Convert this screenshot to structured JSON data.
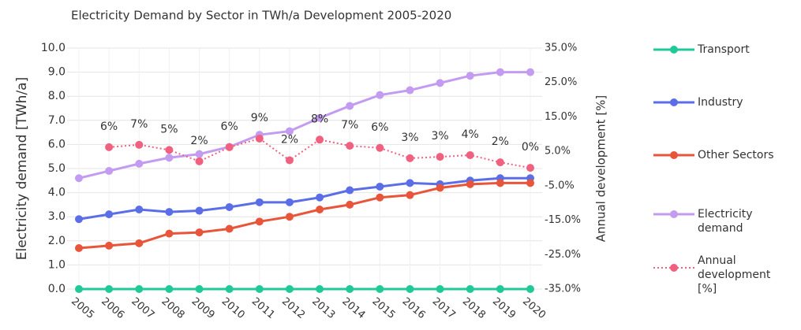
{
  "chart_data": {
    "type": "line",
    "title": "Electricity Demand by Sector in TWh/a Development 2005-2020",
    "ylabel": "Electricity demand [TWh/a]",
    "y2label": "Annual development [%]",
    "categories": [
      "2005",
      "2006",
      "2007",
      "2008",
      "2009",
      "2010",
      "2011",
      "2012",
      "2013",
      "2014",
      "2015",
      "2016",
      "2017",
      "2018",
      "2019",
      "2020"
    ],
    "ylim": [
      0,
      10
    ],
    "yticks": [
      {
        "value": 0,
        "label": "0.0"
      },
      {
        "value": 1,
        "label": "1.0"
      },
      {
        "value": 2,
        "label": "2.0"
      },
      {
        "value": 3,
        "label": "3.0"
      },
      {
        "value": 4,
        "label": "4.0"
      },
      {
        "value": 5,
        "label": "5.0"
      },
      {
        "value": 6,
        "label": "6.0"
      },
      {
        "value": 7,
        "label": "7.0"
      },
      {
        "value": 8,
        "label": "8.0"
      },
      {
        "value": 9,
        "label": "9.0"
      },
      {
        "value": 10,
        "label": "10.0"
      }
    ],
    "y2lim": [
      -35,
      35
    ],
    "y2ticks": [
      {
        "value": -35,
        "label": "-35.0%"
      },
      {
        "value": -25,
        "label": "-25.0%"
      },
      {
        "value": -15,
        "label": "-15.0%"
      },
      {
        "value": -5,
        "label": "-5.0%"
      },
      {
        "value": 5,
        "label": "5.0%"
      },
      {
        "value": 15,
        "label": "15.0%"
      },
      {
        "value": 25,
        "label": "25.0%"
      },
      {
        "value": 35,
        "label": "35.0%"
      }
    ],
    "grid": true,
    "legend": "right",
    "series": [
      {
        "name": "Transport",
        "color": "#20c997",
        "values": [
          0,
          0,
          0,
          0,
          0,
          0,
          0,
          0,
          0,
          0,
          0,
          0,
          0,
          0,
          0,
          0
        ]
      },
      {
        "name": "Industry",
        "color": "#5b6ee8",
        "values": [
          2.9,
          3.1,
          3.3,
          3.2,
          3.25,
          3.4,
          3.6,
          3.6,
          3.8,
          4.1,
          4.25,
          4.4,
          4.35,
          4.5,
          4.6,
          4.6
        ]
      },
      {
        "name": "Other Sectors",
        "color": "#e8553a",
        "values": [
          1.7,
          1.8,
          1.9,
          2.3,
          2.35,
          2.5,
          2.8,
          3.0,
          3.3,
          3.5,
          3.8,
          3.9,
          4.2,
          4.35,
          4.4,
          4.4
        ]
      },
      {
        "name": "Electricity demand",
        "color": "#c39bf0",
        "values": [
          4.6,
          4.9,
          5.2,
          5.45,
          5.6,
          5.9,
          6.4,
          6.55,
          7.1,
          7.6,
          8.05,
          8.25,
          8.55,
          8.85,
          9.0,
          9.0
        ]
      },
      {
        "name": "Annual development [%]",
        "color": "#f0607f",
        "axis": "y2",
        "dashed": true,
        "values": [
          null,
          6.2,
          6.9,
          5.4,
          2.1,
          6.2,
          8.7,
          2.4,
          8.4,
          6.6,
          6.0,
          3.0,
          3.4,
          3.9,
          1.8,
          0.2
        ],
        "value_labels": [
          null,
          "6%",
          "7%",
          "5%",
          "2%",
          "6%",
          "9%",
          "2%",
          "8%",
          "7%",
          "6%",
          "3%",
          "3%",
          "4%",
          "2%",
          "0%"
        ]
      }
    ]
  }
}
